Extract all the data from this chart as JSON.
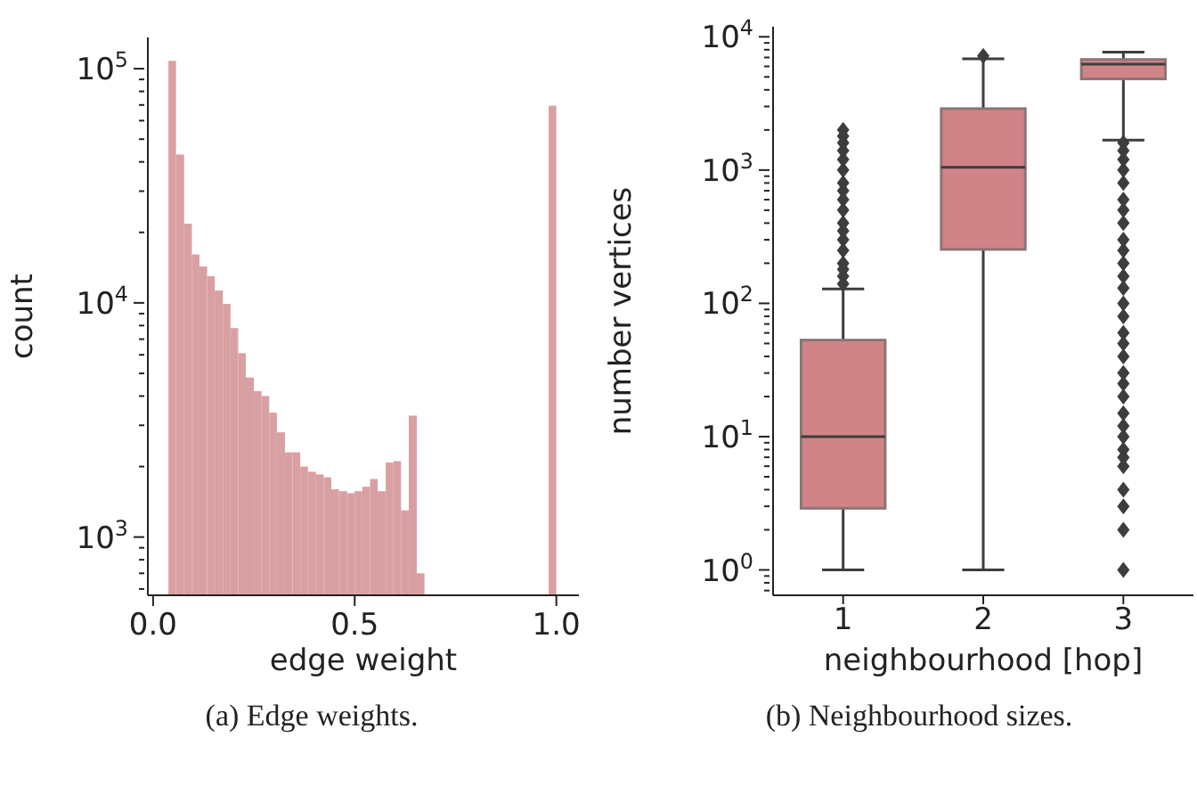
{
  "chart_data": [
    {
      "type": "histogram",
      "xlabel": "edge weight",
      "ylabel": "count",
      "annotations": [
        "(a) Edge weights."
      ],
      "color": "#d9a0a3",
      "log": "y",
      "bins": [
        0.038,
        0.057,
        0.077,
        0.096,
        0.115,
        0.134,
        0.153,
        0.173,
        0.192,
        0.211,
        0.23,
        0.25,
        0.269,
        0.288,
        0.307,
        0.327,
        0.346,
        0.365,
        0.384,
        0.404,
        0.423,
        0.442,
        0.461,
        0.481,
        0.5,
        0.519,
        0.538,
        0.557,
        0.577,
        0.596,
        0.615,
        0.634,
        0.654,
        0.673,
        0.692,
        0.711,
        0.731,
        0.75,
        0.769,
        0.788,
        0.808,
        0.827,
        0.846,
        0.865,
        0.885,
        0.904,
        0.923,
        0.942,
        0.962,
        0.981,
        1.0
      ],
      "values": [
        108000,
        43000,
        21800,
        16100,
        14300,
        13000,
        11300,
        9900,
        7800,
        6100,
        4800,
        4200,
        4000,
        3400,
        2800,
        2300,
        2300,
        2000,
        1900,
        1850,
        1800,
        1600,
        1570,
        1540,
        1570,
        1640,
        1770,
        1570,
        2080,
        2110,
        1300,
        3300,
        700,
        null,
        null,
        null,
        null,
        null,
        null,
        null,
        null,
        null,
        null,
        null,
        null,
        null,
        null,
        null,
        null,
        69500
      ],
      "xlim": [
        -0.013,
        1.056
      ],
      "xticks": [
        {
          "value": 0,
          "label": "0.0"
        },
        {
          "value": 0.5,
          "label": "0.5"
        },
        {
          "value": 1,
          "label": "1.0"
        }
      ],
      "ylim": [
        564,
        136000
      ],
      "yticks": [
        {
          "value": 600,
          "label": null
        },
        {
          "value": 700,
          "label": null
        },
        {
          "value": 800,
          "label": null
        },
        {
          "value": 900,
          "label": null
        },
        {
          "value": 1000,
          "label": "10$^{3}$"
        },
        {
          "value": 2000,
          "label": null
        },
        {
          "value": 3000,
          "label": null
        },
        {
          "value": 4000,
          "label": null
        },
        {
          "value": 5000,
          "label": null
        },
        {
          "value": 6000,
          "label": null
        },
        {
          "value": 7000,
          "label": null
        },
        {
          "value": 8000,
          "label": null
        },
        {
          "value": 9000,
          "label": null
        },
        {
          "value": 10000,
          "label": "10$^{4}$"
        },
        {
          "value": 20000,
          "label": null
        },
        {
          "value": 30000,
          "label": null
        },
        {
          "value": 40000,
          "label": null
        },
        {
          "value": 50000,
          "label": null
        },
        {
          "value": 60000,
          "label": null
        },
        {
          "value": 70000,
          "label": null
        },
        {
          "value": 80000,
          "label": null
        },
        {
          "value": 90000,
          "label": null
        },
        {
          "value": 100000,
          "label": "10$^{5}$"
        }
      ]
    },
    {
      "type": "box",
      "xlabel": "neighbourhood [hop]",
      "ylabel": "number vertices",
      "annotations": [
        "(b) Neighbourhood sizes."
      ],
      "color": "#d08488",
      "log": "y",
      "marker": "diamond",
      "categories": [
        "1",
        "2",
        "3"
      ],
      "boxes": [
        {
          "low": 1,
          "q1": 2.9,
          "median": 10,
          "q3": 53,
          "high": 128,
          "outliers": [
            140,
            160,
            180,
            200,
            250,
            300,
            350,
            400,
            500,
            600,
            700,
            800,
            1000,
            1200,
            1400,
            1600,
            1800,
            2000
          ]
        },
        {
          "low": 1,
          "q1": 254,
          "median": 1050,
          "q3": 2890,
          "high": 6840,
          "outliers": [
            7200
          ]
        },
        {
          "low": 1680,
          "q1": 4830,
          "median": 6240,
          "q3": 6760,
          "high": 7660,
          "outliers": [
            1,
            2,
            3,
            4,
            6,
            7,
            8,
            10,
            12,
            15,
            20,
            25,
            30,
            40,
            50,
            60,
            80,
            100,
            130,
            160,
            200,
            250,
            300,
            400,
            500,
            600,
            800,
            1000,
            1200,
            1400,
            1600
          ]
        }
      ],
      "ylim": [
        0.645,
        11900
      ],
      "yticks": [
        {
          "value": 0.7,
          "label": null
        },
        {
          "value": 0.8,
          "label": null
        },
        {
          "value": 0.9,
          "label": null
        },
        {
          "value": 1,
          "label": "10$^{0}$"
        },
        {
          "value": 2,
          "label": null
        },
        {
          "value": 3,
          "label": null
        },
        {
          "value": 4,
          "label": null
        },
        {
          "value": 5,
          "label": null
        },
        {
          "value": 6,
          "label": null
        },
        {
          "value": 7,
          "label": null
        },
        {
          "value": 8,
          "label": null
        },
        {
          "value": 9,
          "label": null
        },
        {
          "value": 10,
          "label": "10$^{1}$"
        },
        {
          "value": 20,
          "label": null
        },
        {
          "value": 30,
          "label": null
        },
        {
          "value": 40,
          "label": null
        },
        {
          "value": 50,
          "label": null
        },
        {
          "value": 60,
          "label": null
        },
        {
          "value": 70,
          "label": null
        },
        {
          "value": 80,
          "label": null
        },
        {
          "value": 90,
          "label": null
        },
        {
          "value": 100,
          "label": "10$^{2}$"
        },
        {
          "value": 200,
          "label": null
        },
        {
          "value": 300,
          "label": null
        },
        {
          "value": 400,
          "label": null
        },
        {
          "value": 500,
          "label": null
        },
        {
          "value": 600,
          "label": null
        },
        {
          "value": 700,
          "label": null
        },
        {
          "value": 800,
          "label": null
        },
        {
          "value": 900,
          "label": null
        },
        {
          "value": 1000,
          "label": "10$^{3}$"
        },
        {
          "value": 2000,
          "label": null
        },
        {
          "value": 3000,
          "label": null
        },
        {
          "value": 4000,
          "label": null
        },
        {
          "value": 5000,
          "label": null
        },
        {
          "value": 6000,
          "label": null
        },
        {
          "value": 7000,
          "label": null
        },
        {
          "value": 8000,
          "label": null
        },
        {
          "value": 9000,
          "label": null
        },
        {
          "value": 10000,
          "label": "10$^{4}$"
        }
      ]
    }
  ]
}
